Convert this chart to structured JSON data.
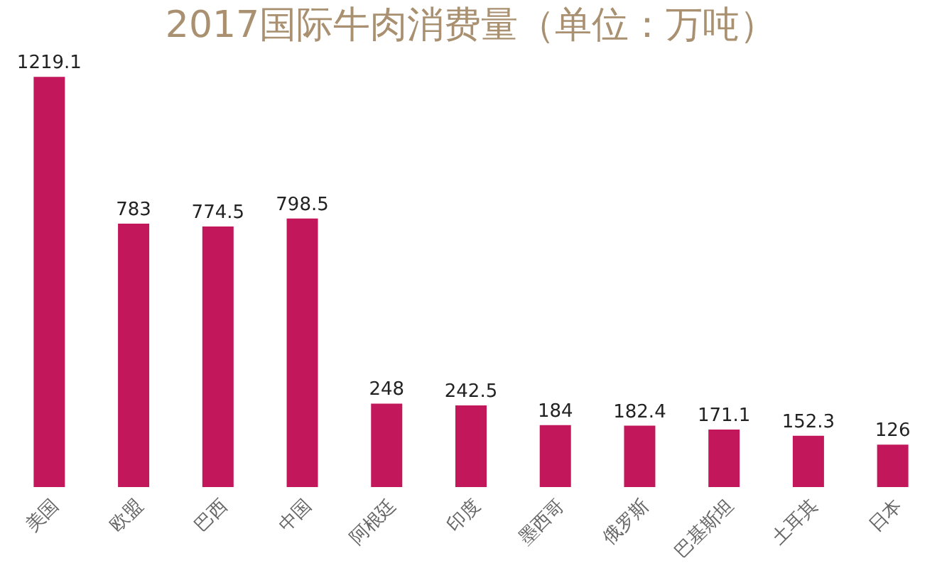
{
  "chart_data": {
    "type": "bar",
    "title": "2017国际牛肉消费量（单位：万吨）",
    "categories": [
      "美国",
      "欧盟",
      "巴西",
      "中国",
      "阿根廷",
      "印度",
      "墨西哥",
      "俄罗斯",
      "巴基斯坦",
      "土耳其",
      "日本"
    ],
    "values": [
      1219.1,
      783,
      774.5,
      798.5,
      248,
      242.5,
      184,
      182.4,
      171.1,
      152.3,
      126
    ],
    "color": "#c2185b",
    "data_labels": true,
    "grid": false
  }
}
